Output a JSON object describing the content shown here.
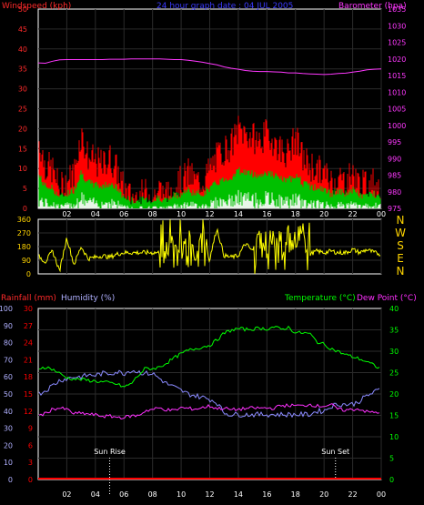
{
  "colors": {
    "background": "#000000",
    "frame": "#ffffff",
    "grid": "#2b2b2b",
    "wind_axis": "#ff2a2a",
    "wind_gust": "#ff0000",
    "wind_avg": "#00c000",
    "wind_lull": "#e8f5e8",
    "barometer": "#ff38ff",
    "title": "#3a3aff",
    "direction": "#ffff00",
    "rain": "#ff0000",
    "humidity": "#8a8aff",
    "humidity_label": "#b0b0ff",
    "temperature": "#00ff00",
    "dewpoint": "#ff30ff",
    "sun_marker": "#ffffff"
  },
  "top_chart": {
    "title": "24 hour graph date : 04 JUL 2005",
    "left_label": "Windspeed (kph)",
    "right_label": "Barometer (hpa)",
    "left_ticks": [
      "0",
      "5",
      "10",
      "15",
      "20",
      "25",
      "30",
      "35",
      "40",
      "45",
      "50"
    ],
    "right_ticks": [
      "975",
      "980",
      "985",
      "990",
      "995",
      "1000",
      "1005",
      "1010",
      "1015",
      "1020",
      "1025",
      "1030",
      "1035"
    ],
    "x_ticks": [
      "02",
      "04",
      "06",
      "08",
      "10",
      "12",
      "14",
      "16",
      "18",
      "20",
      "22",
      "00"
    ]
  },
  "mid_chart": {
    "left_ticks": [
      "0",
      "90",
      "180",
      "270",
      "360"
    ],
    "directions": [
      "N",
      "W",
      "S",
      "E",
      "N"
    ],
    "x_ticks": [
      "02",
      "04",
      "06",
      "08",
      "10",
      "12",
      "14",
      "16",
      "18",
      "20",
      "22",
      "00"
    ]
  },
  "bottom_chart": {
    "rain_label": "Rainfall (mm)",
    "humidity_label": "Humidity (%)",
    "temp_label": "Temperature (°C)",
    "dew_label": "Dew Point (°C)",
    "humidity_ticks": [
      "0",
      "10",
      "20",
      "30",
      "40",
      "50",
      "60",
      "70",
      "80",
      "90",
      "100"
    ],
    "rain_ticks": [
      "0",
      "3",
      "6",
      "9",
      "12",
      "15",
      "18",
      "21",
      "24",
      "27",
      "30"
    ],
    "temp_ticks": [
      "0",
      "5",
      "10",
      "15",
      "20",
      "25",
      "30",
      "35",
      "40"
    ],
    "x_ticks": [
      "02",
      "04",
      "06",
      "08",
      "10",
      "12",
      "14",
      "16",
      "18",
      "20",
      "22",
      "00"
    ],
    "sun_rise_label": "Sun Rise",
    "sun_set_label": "Sun Set",
    "sun_rise_hour": 5.0,
    "sun_set_hour": 20.8
  },
  "chart_data": [
    {
      "type": "line",
      "title": "24 hour graph date : 04 JUL 2005",
      "xlabel": "",
      "ylabel": "Windspeed (kph)",
      "y2label": "Barometer (hpa)",
      "xlim": [
        0,
        24
      ],
      "ylim": [
        0,
        50
      ],
      "y2lim": [
        975,
        1035
      ],
      "x_hours": [
        0,
        0.5,
        1,
        1.5,
        2,
        2.5,
        3,
        3.5,
        4,
        4.5,
        5,
        5.5,
        6,
        6.5,
        7,
        7.5,
        8,
        8.5,
        9,
        9.5,
        10,
        10.5,
        11,
        11.5,
        12,
        12.5,
        13,
        13.5,
        14,
        14.5,
        15,
        15.5,
        16,
        16.5,
        17,
        17.5,
        18,
        18.5,
        19,
        19.5,
        20,
        20.5,
        21,
        21.5,
        22,
        22.5,
        23,
        23.5,
        24
      ],
      "series": [
        {
          "name": "Windspeed (kph)",
          "axis": "left",
          "style": "bars",
          "values": [
            17,
            10,
            9,
            4,
            6,
            8,
            18,
            12,
            11,
            10,
            12,
            9,
            4,
            2,
            2,
            3,
            2,
            4,
            2,
            5,
            6,
            8,
            6,
            6,
            9,
            12,
            14,
            15,
            19,
            18,
            17,
            16,
            18,
            16,
            14,
            13,
            17,
            12,
            10,
            9,
            8,
            6,
            7,
            6,
            8,
            5,
            5,
            6,
            5
          ]
        },
        {
          "name": "Barometer (hpa)",
          "axis": "right",
          "style": "line",
          "values": [
            1018.8,
            1018.7,
            1019.3,
            1019.7,
            1019.8,
            1019.8,
            1019.8,
            1019.8,
            1019.8,
            1019.8,
            1019.9,
            1019.9,
            1019.9,
            1020,
            1020,
            1020,
            1020,
            1020,
            1019.9,
            1019.8,
            1019.8,
            1019.6,
            1019.3,
            1019,
            1018.6,
            1018.2,
            1017.6,
            1017.2,
            1016.9,
            1016.5,
            1016.3,
            1016.2,
            1016.2,
            1016.1,
            1016.0,
            1015.8,
            1015.8,
            1015.6,
            1015.5,
            1015.4,
            1015.3,
            1015.4,
            1015.6,
            1015.7,
            1016,
            1016.3,
            1016.7,
            1016.9,
            1017
          ]
        }
      ]
    },
    {
      "type": "line",
      "title": "",
      "ylabel": "",
      "xlim": [
        0,
        24
      ],
      "ylim": [
        0,
        360
      ],
      "series": [
        {
          "name": "",
          "values": [
            120,
            80,
            150,
            20,
            240,
            60,
            180,
            100,
            110,
            120,
            110,
            130,
            140,
            140,
            140,
            140,
            140,
            140,
            20,
            330,
            60,
            310,
            80,
            320,
            100,
            300,
            120,
            110,
            120,
            200,
            150,
            300,
            100,
            330,
            60,
            320,
            160,
            280,
            130,
            150,
            140,
            150,
            140,
            140,
            160,
            140,
            160,
            140,
            130
          ]
        }
      ]
    },
    {
      "type": "line",
      "title": "",
      "ylabel": "Humidity (%)",
      "y2label": "Temperature (°C)",
      "xlim": [
        0,
        24
      ],
      "ylim": [
        0,
        100
      ],
      "y2lim": [
        0,
        40
      ],
      "series": [
        {
          "name": "Humidity (%)",
          "axis": "left",
          "values": [
            50,
            52,
            55,
            58,
            59,
            60,
            60,
            61,
            61,
            62,
            62,
            63,
            62,
            64,
            63,
            62,
            62,
            59,
            56,
            54,
            52,
            50,
            49,
            48,
            47,
            45,
            39,
            38,
            38,
            38,
            38,
            38,
            38,
            38,
            38,
            38,
            38,
            38,
            38,
            40,
            40,
            43,
            44,
            44,
            44,
            46,
            49,
            51,
            53
          ]
        },
        {
          "name": "Temperature (°C)",
          "axis": "right",
          "values": [
            26,
            26.3,
            25.8,
            24.8,
            23.8,
            23.5,
            23.4,
            23.2,
            23.0,
            22.8,
            22.6,
            22.3,
            21.6,
            22.4,
            24.3,
            26,
            25.9,
            26.3,
            27.3,
            28.4,
            29.4,
            30.2,
            30.6,
            31.0,
            31.4,
            32.6,
            34.2,
            34.9,
            35.3,
            35.1,
            35.2,
            35.4,
            35.2,
            35.7,
            35.1,
            35.6,
            34.3,
            34.3,
            34.1,
            32.2,
            31.6,
            30.6,
            29.9,
            29.2,
            28.7,
            28.2,
            27.5,
            26.7,
            25.8
          ]
        },
        {
          "name": "Dew Point (°C)",
          "axis": "right",
          "values": [
            15,
            15.4,
            16.5,
            16.7,
            16.4,
            15.4,
            15.5,
            15.3,
            15.1,
            14.8,
            14.8,
            14.6,
            14.5,
            14.9,
            14.9,
            16.1,
            16.4,
            16.7,
            16.3,
            16.1,
            16.8,
            16.6,
            16.5,
            16.8,
            17.2,
            16.6,
            16.7,
            16.3,
            16.4,
            16.6,
            16.7,
            16.7,
            16.7,
            16.7,
            17.3,
            17.3,
            17.3,
            17.2,
            17.6,
            17.2,
            17.2,
            17.5,
            16.4,
            16.2,
            16.4,
            16.5,
            15.8,
            15.7,
            15.8
          ]
        },
        {
          "name": "Rainfall (mm)",
          "axis": "rain",
          "values": [
            0,
            0,
            0,
            0,
            0,
            0,
            0,
            0,
            0,
            0,
            0,
            0,
            0,
            0,
            0,
            0,
            0,
            0,
            0,
            0,
            0,
            0,
            0,
            0,
            0,
            0,
            0,
            0,
            0,
            0,
            0,
            0,
            0,
            0,
            0,
            0,
            0,
            0,
            0,
            0,
            0,
            0,
            0,
            0,
            0,
            0,
            0,
            0,
            0
          ]
        }
      ]
    }
  ]
}
